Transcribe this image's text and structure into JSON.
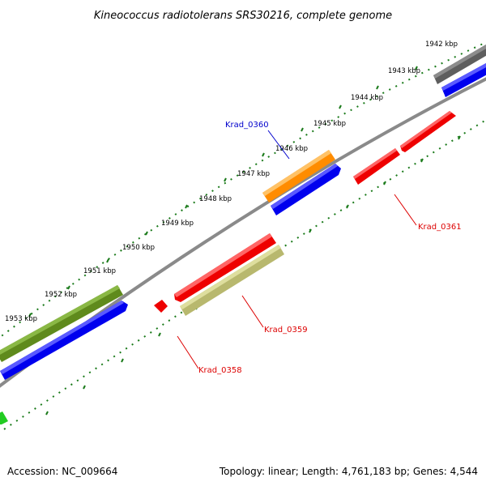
{
  "title": "Kineococcus radiotolerans SRS30216, complete genome",
  "footer": {
    "accession": "Accession: NC_009664",
    "topology": "Topology: linear; Length: 4,761,183 bp; Genes: 4,544"
  },
  "ticks": [
    "1942 kbp",
    "1943 kbp",
    "1944 kbp",
    "1945 kbp",
    "1946 kbp",
    "1947 kbp",
    "1948 kbp",
    "1949 kbp",
    "1950 kbp",
    "1951 kbp",
    "1952 kbp",
    "1953 kbp"
  ],
  "labels": {
    "krad_0360": "Krad_0360",
    "krad_0361": "Krad_0361",
    "krad_0359": "Krad_0359",
    "krad_0358": "Krad_0358"
  },
  "colors": {
    "backbone": "#8a8a8a",
    "tick_dots": "#1a7a1a",
    "red": "#ee0000",
    "blue": "#0000ee",
    "orange": "#ff8c00",
    "olive": "#5f8a1c",
    "khaki": "#b8b86e",
    "gray": "#606060",
    "green": "#22cc22",
    "label_blue": "#0000cc",
    "label_red": "#dd0000"
  }
}
